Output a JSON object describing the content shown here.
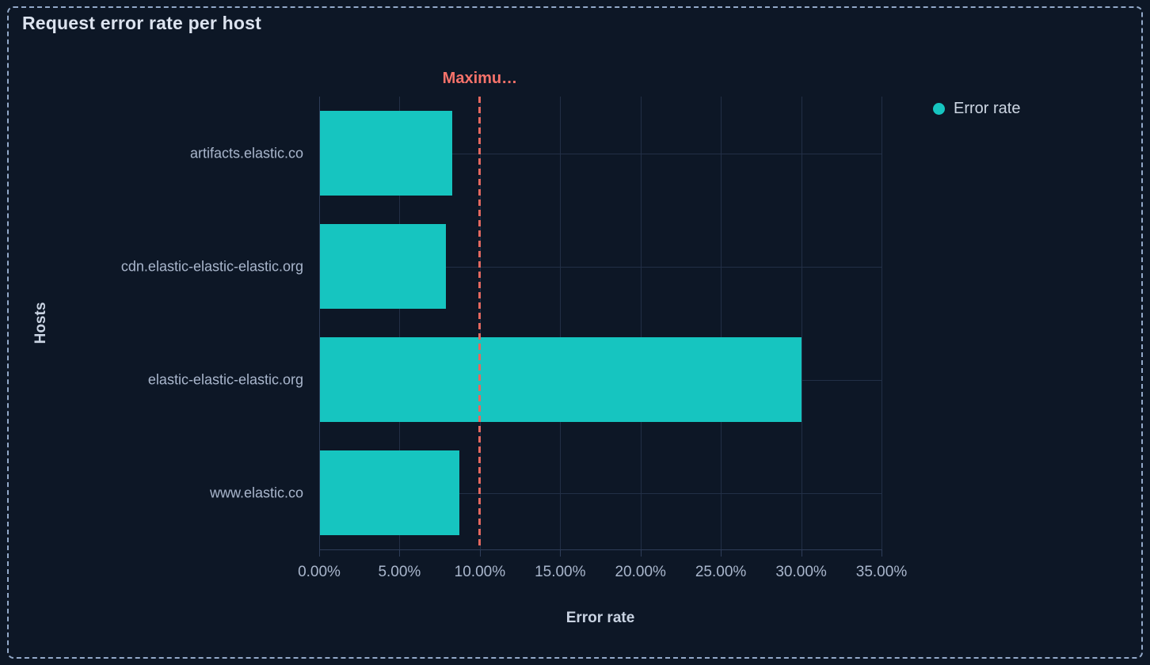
{
  "panel": {
    "title": "Request error rate per host"
  },
  "legend": {
    "position": "top-right",
    "items": [
      {
        "label": "Error rate",
        "color": "#16C5C0"
      }
    ]
  },
  "chart_data": {
    "type": "bar",
    "orientation": "horizontal",
    "title": "Request error rate per host",
    "xlabel": "Error rate",
    "ylabel": "Hosts",
    "categories": [
      "artifacts.elastic.co",
      "cdn.elastic-elastic-elastic.org",
      "elastic-elastic-elastic.org",
      "www.elastic.co"
    ],
    "series": [
      {
        "name": "Error rate",
        "color": "#16C5C0",
        "values": [
          8.3,
          7.9,
          30.0,
          8.7
        ]
      }
    ],
    "value_unit": "percent",
    "xlim": [
      0,
      35
    ],
    "x_ticks": [
      0,
      5,
      10,
      15,
      20,
      25,
      30,
      35
    ],
    "x_tick_labels": [
      "0.00%",
      "5.00%",
      "10.00%",
      "15.00%",
      "20.00%",
      "25.00%",
      "30.00%",
      "35.00%"
    ],
    "grid": true,
    "legend_position": "top-right",
    "threshold_line": {
      "value": 10,
      "label": "Maximu…",
      "style": "dashed",
      "color": "#F6726A"
    }
  },
  "colors": {
    "background": "#0D1726",
    "bar": "#16C5C0",
    "threshold": "#F6726A",
    "panel_border": "#93A9C9",
    "gridline": "#222F46",
    "axis_line": "#2E3D59"
  }
}
